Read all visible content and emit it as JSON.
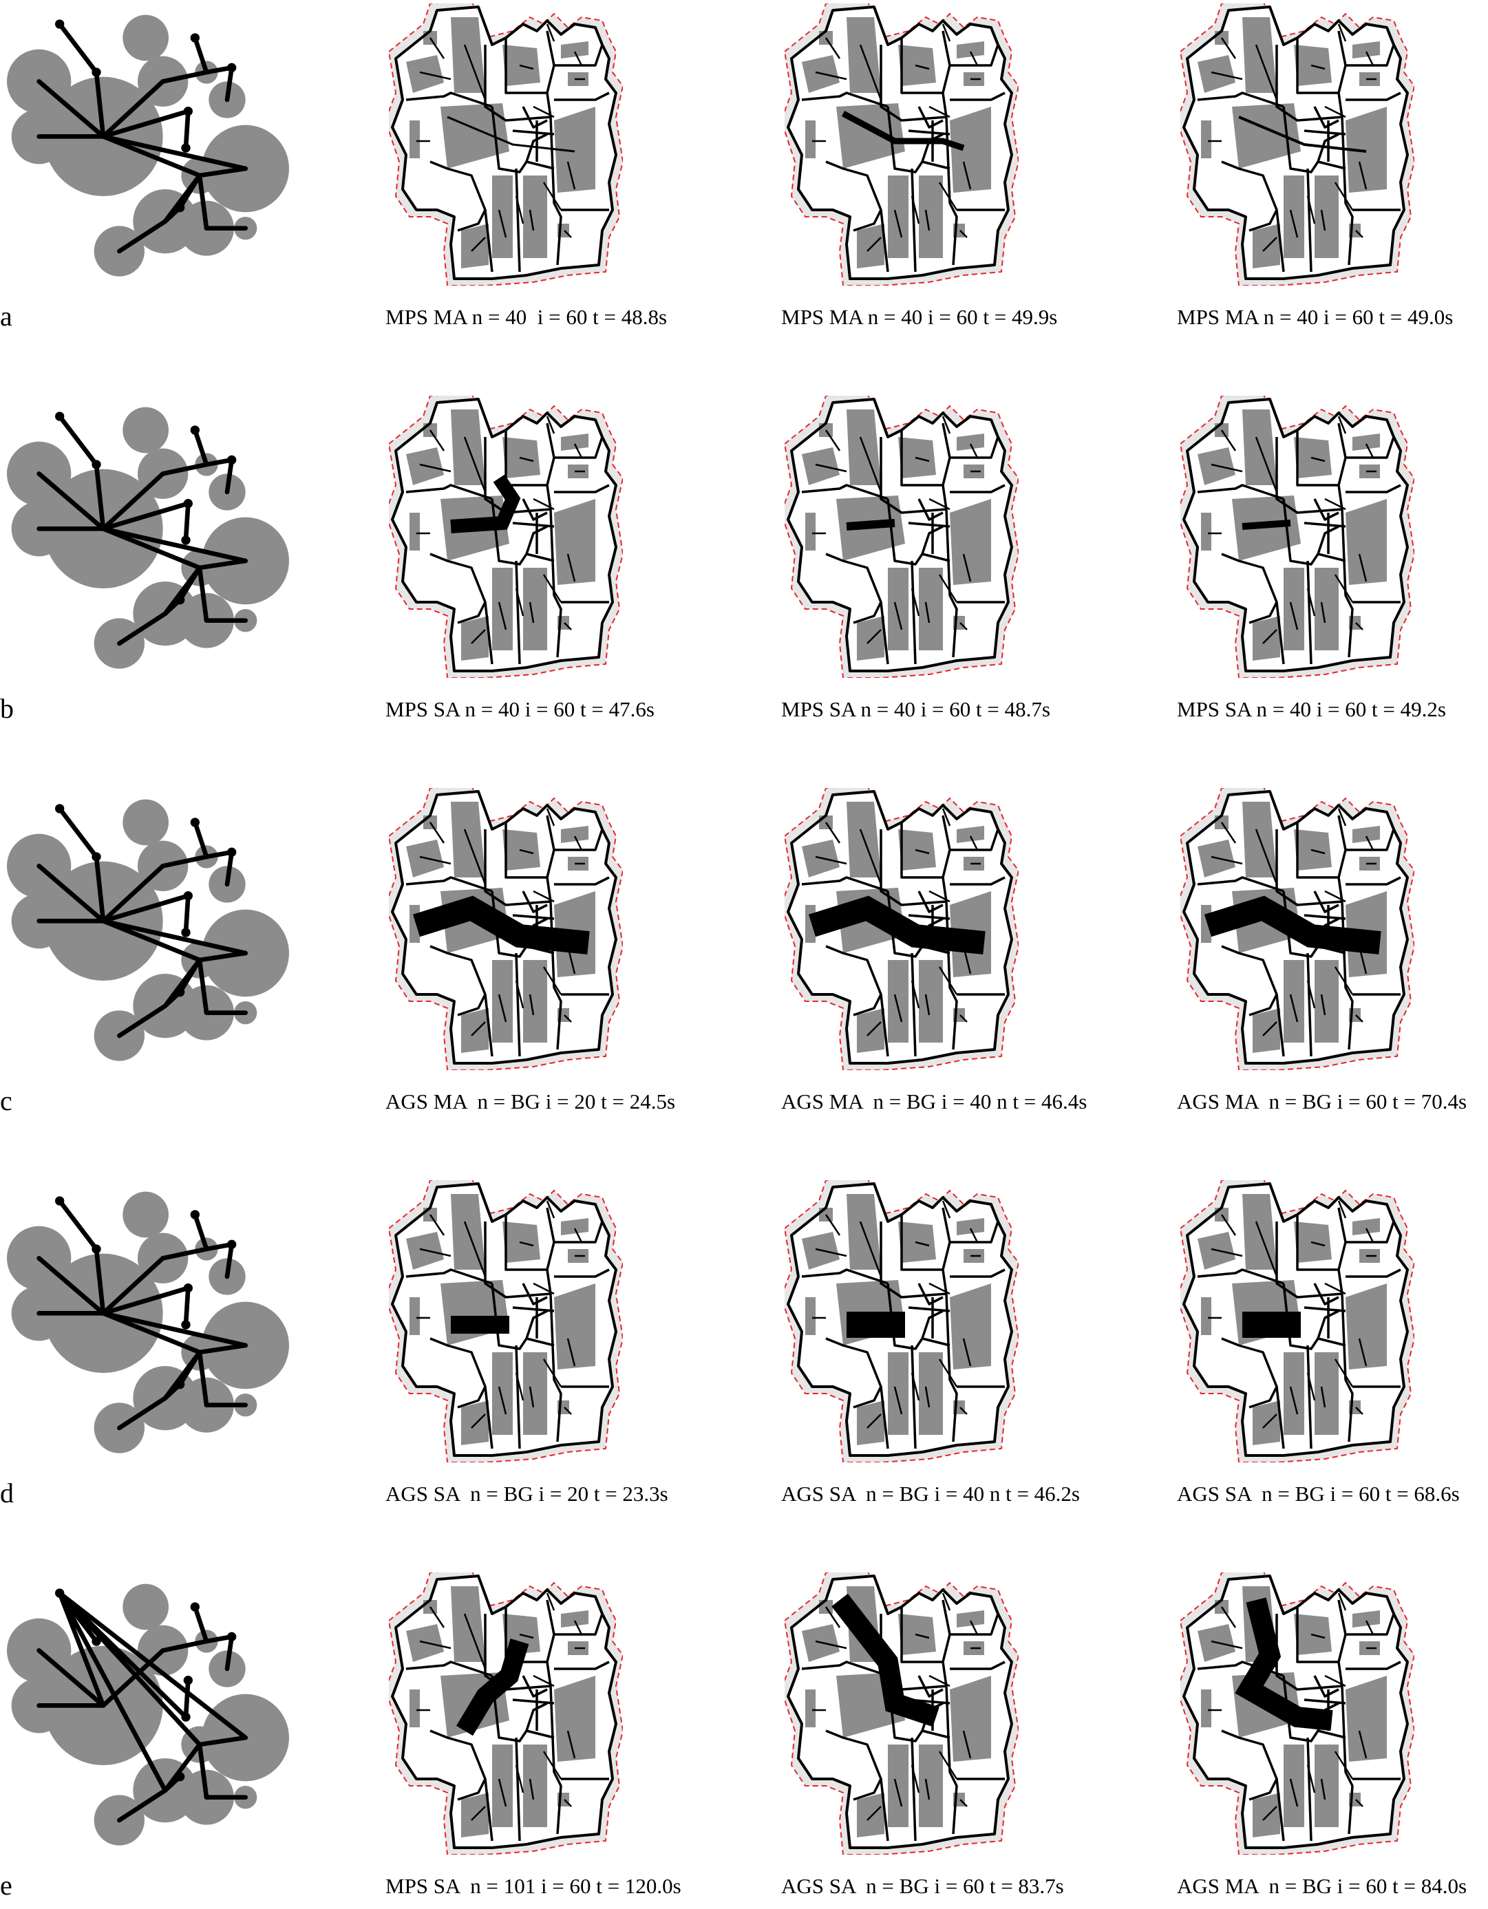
{
  "colors": {
    "region_fill": "#8c8c8c",
    "node_fill": "#8c8c8c",
    "edge": "#000000",
    "boundary": "#e8252b",
    "halo": "#e6e6e6"
  },
  "rows": [
    {
      "letter": "a",
      "captions": [
        "MPS MA n = 40  i = 60 t = 48.8s",
        "MPS MA n = 40 i = 60 t = 49.9s",
        "MPS MA n = 40 i = 60 t = 49.0s"
      ],
      "trunk_widths": [
        3,
        9,
        4
      ]
    },
    {
      "letter": "b",
      "captions": [
        "MPS SA n = 40 i = 60 t = 47.6s",
        "MPS SA n = 40 i = 60 t = 48.7s",
        "MPS SA n = 40 i = 60 t = 49.2s"
      ],
      "trunk_widths": [
        20,
        12,
        10
      ]
    },
    {
      "letter": "c",
      "captions": [
        "AGS MA  n = BG i = 20 t = 24.5s",
        "AGS MA  n = BG i = 40 n t = 46.4s",
        "AGS MA  n = BG i = 60 t = 70.4s"
      ],
      "trunk_widths": [
        34,
        34,
        34
      ]
    },
    {
      "letter": "d",
      "captions": [
        "AGS SA  n = BG i = 20 t = 23.3s",
        "AGS SA  n = BG i = 40 n t = 46.2s",
        "AGS SA  n = BG i = 60 t = 68.6s"
      ],
      "trunk_widths": [
        26,
        38,
        38
      ]
    },
    {
      "letter": "e",
      "captions": [
        "MPS SA  n = 101 i = 60 t = 120.0s",
        "AGS SA  n = BG i = 60 t = 83.7s",
        "AGS MA  n = BG i = 60 t = 84.0s"
      ],
      "trunk_widths": [
        28,
        30,
        30
      ]
    }
  ]
}
